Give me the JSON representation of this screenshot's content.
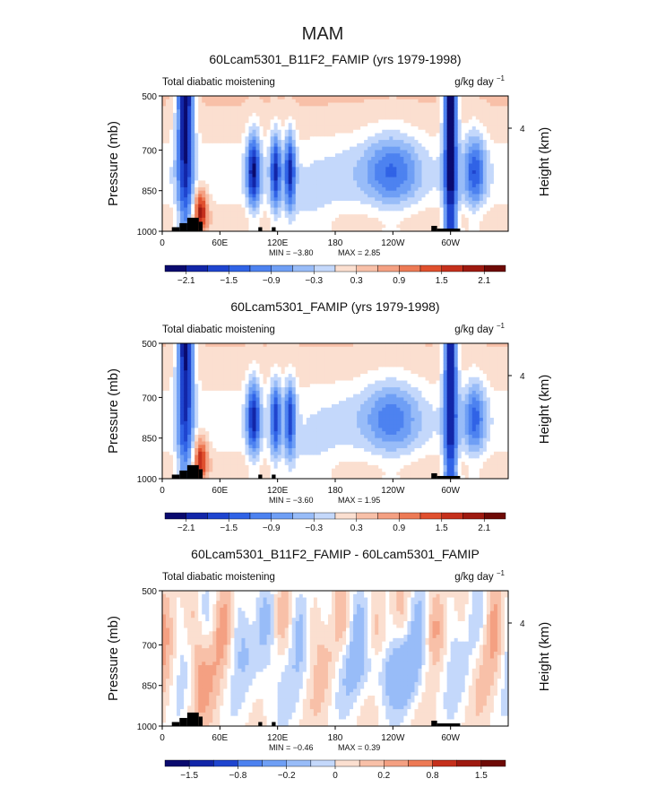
{
  "main_title": "MAM",
  "chart_data": [
    {
      "type": "heatmap",
      "title": "60Lcam5301_B11F2_FAMIP (yrs 1979-1998)",
      "left_label": "Total diabatic moistening",
      "units": "g/kg day",
      "units_exp": "−1",
      "ylabel": "Pressure (mb)",
      "ylabel_right": "Height (km)",
      "x_ticks": [
        "0",
        "60E",
        "120E",
        "180",
        "120W",
        "60W"
      ],
      "x_tick_values": [
        0,
        60,
        120,
        180,
        240,
        300
      ],
      "xlim": [
        0,
        360
      ],
      "y_ticks": [
        "500",
        "700",
        "850",
        "1000"
      ],
      "y_tick_values": [
        500,
        700,
        850,
        1000
      ],
      "ylim": [
        500,
        1000
      ],
      "right_ticks": [
        "4"
      ],
      "right_tick_values": [
        4
      ],
      "min_text": "MIN =   −3.80",
      "max_text": "MAX =    2.85",
      "min": -3.8,
      "max": 2.85,
      "colorbar_labels": [
        "−2.1",
        "−1.5",
        "−0.9",
        "−0.3",
        "0.3",
        "0.9",
        "1.5",
        "2.1"
      ],
      "colorbar_levels": [
        -2.4,
        -2.1,
        -1.8,
        -1.5,
        -1.2,
        -0.9,
        -0.6,
        -0.3,
        0,
        0.3,
        0.6,
        0.9,
        1.2,
        1.5,
        1.8,
        2.1,
        2.4
      ]
    },
    {
      "type": "heatmap",
      "title": "60Lcam5301_FAMIP (yrs 1979-1998)",
      "left_label": "Total diabatic moistening",
      "units": "g/kg day",
      "units_exp": "−1",
      "ylabel": "Pressure (mb)",
      "ylabel_right": "Height (km)",
      "x_ticks": [
        "0",
        "60E",
        "120E",
        "180",
        "120W",
        "60W"
      ],
      "x_tick_values": [
        0,
        60,
        120,
        180,
        240,
        300
      ],
      "xlim": [
        0,
        360
      ],
      "y_ticks": [
        "500",
        "700",
        "850",
        "1000"
      ],
      "y_tick_values": [
        500,
        700,
        850,
        1000
      ],
      "ylim": [
        500,
        1000
      ],
      "right_ticks": [
        "4"
      ],
      "right_tick_values": [
        4
      ],
      "min_text": "MIN =   −3.60",
      "max_text": "MAX =    1.95",
      "min": -3.6,
      "max": 1.95,
      "colorbar_labels": [
        "−2.1",
        "−1.5",
        "−0.9",
        "−0.3",
        "0.3",
        "0.9",
        "1.5",
        "2.1"
      ],
      "colorbar_levels": [
        -2.4,
        -2.1,
        -1.8,
        -1.5,
        -1.2,
        -0.9,
        -0.6,
        -0.3,
        0,
        0.3,
        0.6,
        0.9,
        1.2,
        1.5,
        1.8,
        2.1,
        2.4
      ]
    },
    {
      "type": "heatmap",
      "title": "60Lcam5301_B11F2_FAMIP - 60Lcam5301_FAMIP",
      "left_label": "Total diabatic moistening",
      "units": "g/kg day",
      "units_exp": "−1",
      "ylabel": "Pressure (mb)",
      "ylabel_right": "Height (km)",
      "x_ticks": [
        "0",
        "60E",
        "120E",
        "180",
        "120W",
        "60W"
      ],
      "x_tick_values": [
        0,
        60,
        120,
        180,
        240,
        300
      ],
      "xlim": [
        0,
        360
      ],
      "y_ticks": [
        "500",
        "700",
        "850",
        "1000"
      ],
      "y_tick_values": [
        500,
        700,
        850,
        1000
      ],
      "ylim": [
        500,
        1000
      ],
      "right_ticks": [
        "4"
      ],
      "right_tick_values": [
        4
      ],
      "min_text": "MIN =   −0.46",
      "max_text": "MAX =    0.39",
      "min": -0.46,
      "max": 0.39,
      "colorbar_labels": [
        "−1.5",
        "−0.8",
        "−0.2",
        "0",
        "0.2",
        "0.8",
        "1.5"
      ],
      "colorbar_levels": [
        -2,
        -1.5,
        -1.2,
        -0.8,
        -0.5,
        -0.2,
        -0.1,
        0,
        0.1,
        0.2,
        0.5,
        0.8,
        1.2,
        1.5,
        2
      ]
    }
  ],
  "colors": {
    "palette": [
      "#0a0a6e",
      "#1226a8",
      "#1f45cf",
      "#3063e6",
      "#4d82f0",
      "#6f9ff5",
      "#98bcf8",
      "#c4d8fb",
      "#ffffff",
      "#fbdfd0",
      "#f8c0a8",
      "#f4a082",
      "#ed7a55",
      "#e0502e",
      "#c5301c",
      "#9e1a10",
      "#6e0a06"
    ],
    "topography": "#000000"
  }
}
